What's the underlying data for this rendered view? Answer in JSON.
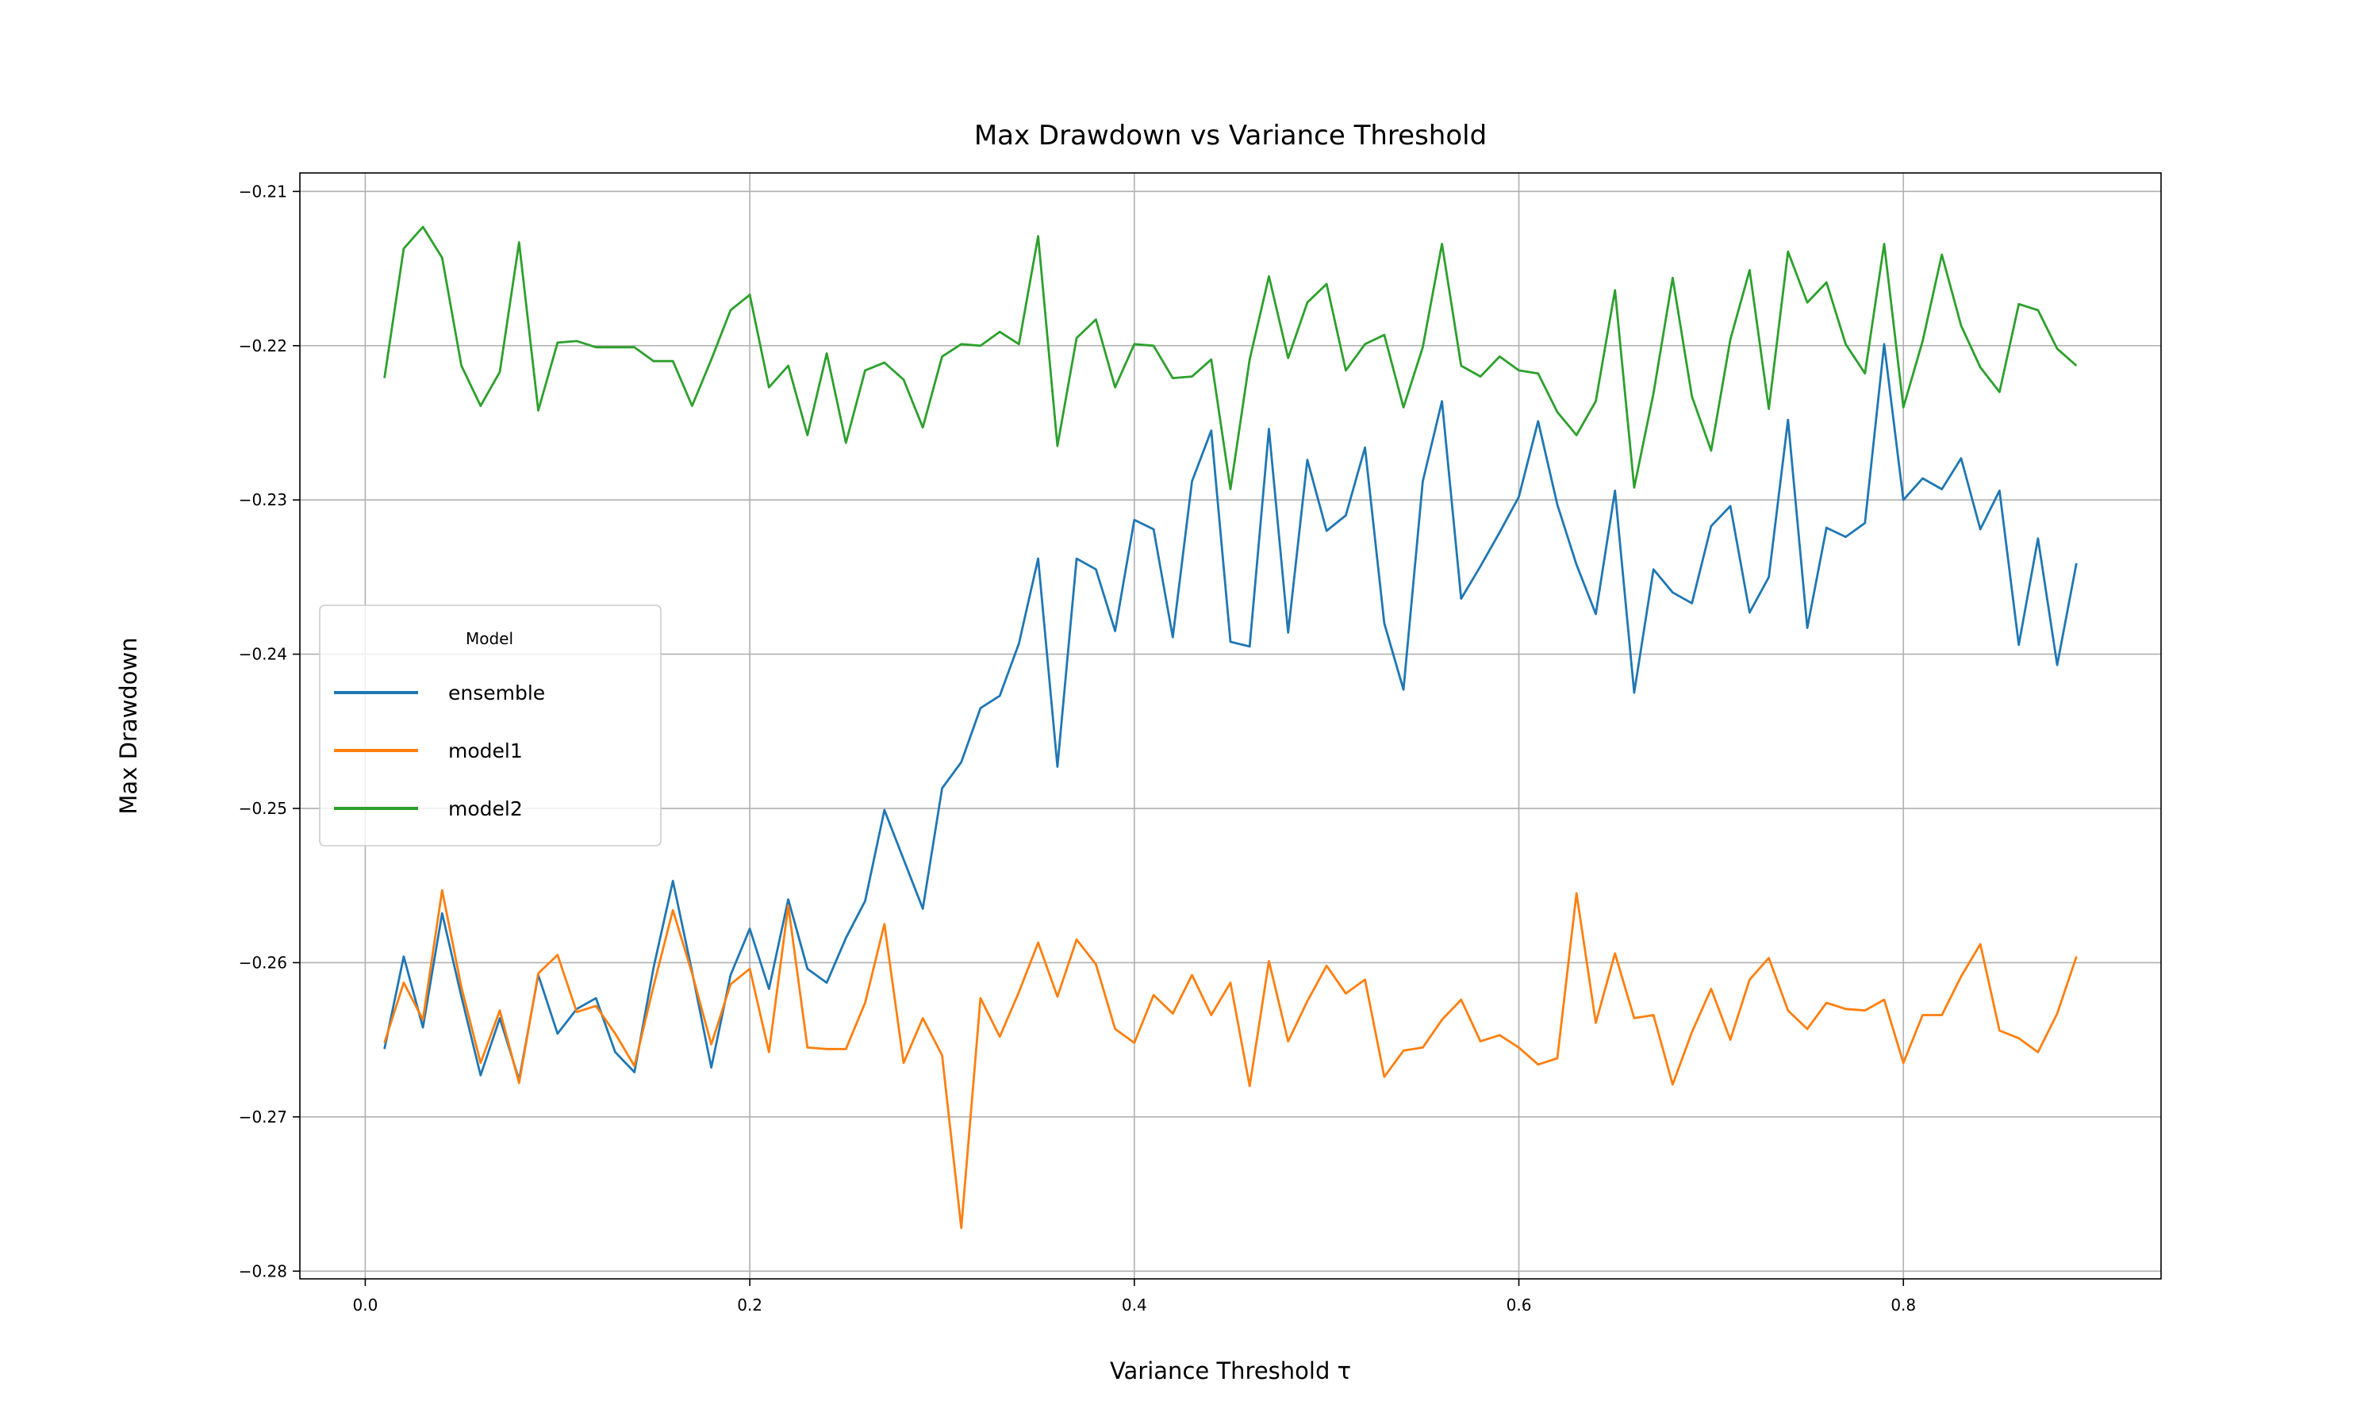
{
  "chart_data": {
    "type": "line",
    "title": "Max Drawdown vs Variance Threshold",
    "xlabel": "Variance Threshold τ",
    "ylabel": "Max Drawdown",
    "xlim": [
      -0.034,
      0.934
    ],
    "ylim": [
      -0.2805,
      -0.2088
    ],
    "xticks": [
      0.0,
      0.2,
      0.4,
      0.6,
      0.8
    ],
    "xtick_labels": [
      "0.0",
      "0.2",
      "0.4",
      "0.6",
      "0.8"
    ],
    "yticks": [
      -0.21,
      -0.22,
      -0.23,
      -0.24,
      -0.25,
      -0.26,
      -0.27,
      -0.28
    ],
    "ytick_labels": [
      "−0.21",
      "−0.22",
      "−0.23",
      "−0.24",
      "−0.25",
      "−0.26",
      "−0.27",
      "−0.28"
    ],
    "grid": true,
    "legend": {
      "title": "Model",
      "placement": "center-left"
    },
    "x": [
      0.01,
      0.02,
      0.03,
      0.04,
      0.05,
      0.06,
      0.07,
      0.08,
      0.09,
      0.1,
      0.11,
      0.12,
      0.13,
      0.14,
      0.15,
      0.16,
      0.17,
      0.18,
      0.19,
      0.2,
      0.21,
      0.22,
      0.23,
      0.24,
      0.25,
      0.26,
      0.27,
      0.28,
      0.29,
      0.3,
      0.31,
      0.32,
      0.33,
      0.34,
      0.35,
      0.36,
      0.37,
      0.38,
      0.39,
      0.4,
      0.41,
      0.42,
      0.43,
      0.44,
      0.45,
      0.46,
      0.47,
      0.48,
      0.49,
      0.5,
      0.51,
      0.52,
      0.53,
      0.54,
      0.55,
      0.56,
      0.57,
      0.58,
      0.59,
      0.6,
      0.61,
      0.62,
      0.63,
      0.64,
      0.65,
      0.66,
      0.67,
      0.68,
      0.69,
      0.7,
      0.71,
      0.72,
      0.73,
      0.74,
      0.75,
      0.76,
      0.77,
      0.78,
      0.79,
      0.8,
      0.81,
      0.82,
      0.83,
      0.84,
      0.85,
      0.86,
      0.87,
      0.88,
      0.89
    ],
    "series": [
      {
        "name": "ensemble",
        "color": "#1f77b4",
        "values": [
          -0.2656,
          -0.2596,
          -0.2642,
          -0.2568,
          -0.2622,
          -0.2673,
          -0.2636,
          -0.2676,
          -0.2608,
          -0.2646,
          -0.263,
          -0.2623,
          -0.2658,
          -0.2671,
          -0.2603,
          -0.2547,
          -0.2606,
          -0.2668,
          -0.2608,
          -0.2578,
          -0.2617,
          -0.2559,
          -0.2604,
          -0.2613,
          -0.2584,
          -0.256,
          -0.2501,
          -0.2533,
          -0.2565,
          -0.2487,
          -0.247,
          -0.2435,
          -0.2427,
          -0.2393,
          -0.2338,
          -0.2473,
          -0.2338,
          -0.2345,
          -0.2385,
          -0.2313,
          -0.2319,
          -0.2389,
          -0.2288,
          -0.2255,
          -0.2392,
          -0.2395,
          -0.2254,
          -0.2386,
          -0.2274,
          -0.232,
          -0.231,
          -0.2266,
          -0.238,
          -0.2423,
          -0.2288,
          -0.2236,
          -0.2364,
          -0.2343,
          -0.2321,
          -0.2298,
          -0.2249,
          -0.2303,
          -0.2342,
          -0.2374,
          -0.2294,
          -0.2425,
          -0.2345,
          -0.236,
          -0.2367,
          -0.2317,
          -0.2304,
          -0.2373,
          -0.235,
          -0.2248,
          -0.2383,
          -0.2318,
          -0.2324,
          -0.2315,
          -0.2199,
          -0.23,
          -0.2286,
          -0.2293,
          -0.2273,
          -0.2319,
          -0.2294,
          -0.2394,
          -0.2325,
          -0.2407,
          -0.2341
        ]
      },
      {
        "name": "model1",
        "color": "#ff7f0e",
        "values": [
          -0.2652,
          -0.2613,
          -0.2637,
          -0.2553,
          -0.2616,
          -0.2665,
          -0.2631,
          -0.2678,
          -0.2607,
          -0.2595,
          -0.2632,
          -0.2628,
          -0.2646,
          -0.2667,
          -0.2615,
          -0.2566,
          -0.2607,
          -0.2653,
          -0.2614,
          -0.2604,
          -0.2658,
          -0.2563,
          -0.2655,
          -0.2656,
          -0.2656,
          -0.2626,
          -0.2575,
          -0.2665,
          -0.2636,
          -0.266,
          -0.2772,
          -0.2623,
          -0.2648,
          -0.2619,
          -0.2587,
          -0.2622,
          -0.2585,
          -0.2601,
          -0.2643,
          -0.2652,
          -0.2621,
          -0.2633,
          -0.2608,
          -0.2634,
          -0.2613,
          -0.268,
          -0.2599,
          -0.2651,
          -0.2625,
          -0.2602,
          -0.262,
          -0.2611,
          -0.2674,
          -0.2657,
          -0.2655,
          -0.2637,
          -0.2624,
          -0.2651,
          -0.2647,
          -0.2655,
          -0.2666,
          -0.2662,
          -0.2555,
          -0.2639,
          -0.2594,
          -0.2636,
          -0.2634,
          -0.2679,
          -0.2645,
          -0.2617,
          -0.265,
          -0.2611,
          -0.2597,
          -0.2631,
          -0.2643,
          -0.2626,
          -0.263,
          -0.2631,
          -0.2624,
          -0.2665,
          -0.2634,
          -0.2634,
          -0.2609,
          -0.2588,
          -0.2644,
          -0.2649,
          -0.2658,
          -0.2633,
          -0.2596
        ]
      },
      {
        "name": "model2",
        "color": "#2ca02c",
        "values": [
          -0.2221,
          -0.2137,
          -0.2123,
          -0.2143,
          -0.2213,
          -0.2239,
          -0.2217,
          -0.2133,
          -0.2242,
          -0.2198,
          -0.2197,
          -0.2201,
          -0.2201,
          -0.2201,
          -0.221,
          -0.221,
          -0.2239,
          -0.2209,
          -0.2177,
          -0.2167,
          -0.2227,
          -0.2213,
          -0.2258,
          -0.2205,
          -0.2263,
          -0.2216,
          -0.2211,
          -0.2222,
          -0.2253,
          -0.2207,
          -0.2199,
          -0.22,
          -0.2191,
          -0.2199,
          -0.2129,
          -0.2265,
          -0.2195,
          -0.2183,
          -0.2227,
          -0.2199,
          -0.22,
          -0.2221,
          -0.222,
          -0.2209,
          -0.2293,
          -0.2209,
          -0.2155,
          -0.2208,
          -0.2172,
          -0.216,
          -0.2216,
          -0.2199,
          -0.2193,
          -0.224,
          -0.2201,
          -0.2134,
          -0.2213,
          -0.222,
          -0.2207,
          -0.2216,
          -0.2218,
          -0.2243,
          -0.2258,
          -0.2236,
          -0.2164,
          -0.2292,
          -0.2231,
          -0.2156,
          -0.2233,
          -0.2268,
          -0.2196,
          -0.2151,
          -0.2241,
          -0.2139,
          -0.2172,
          -0.2159,
          -0.2199,
          -0.2218,
          -0.2134,
          -0.224,
          -0.2197,
          -0.2141,
          -0.2187,
          -0.2214,
          -0.223,
          -0.2173,
          -0.2177,
          -0.2202,
          -0.2213
        ]
      }
    ]
  }
}
